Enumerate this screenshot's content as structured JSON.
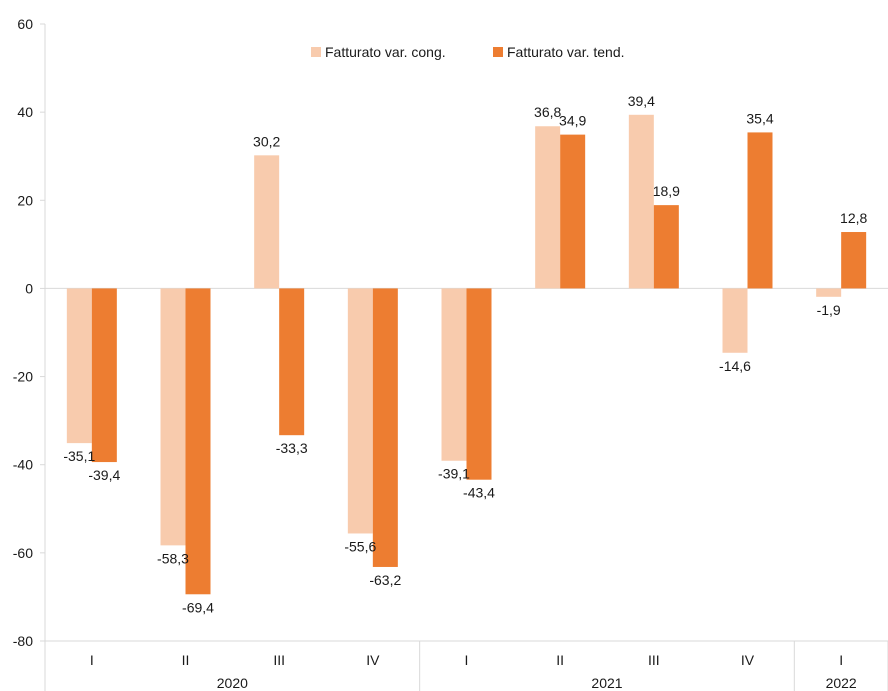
{
  "chart_data": {
    "type": "bar",
    "title": "",
    "xlabel": "",
    "ylabel": "",
    "ylim": [
      -80,
      60
    ],
    "yticks": [
      60,
      40,
      20,
      0,
      -20,
      -40,
      -60,
      -80
    ],
    "grid": false,
    "legend_position": "top",
    "categories": [
      "I",
      "II",
      "III",
      "IV",
      "I",
      "II",
      "III",
      "IV",
      "I"
    ],
    "groups": [
      {
        "label": "2020",
        "span": 4
      },
      {
        "label": "2021",
        "span": 4
      },
      {
        "label": "2022",
        "span": 1
      }
    ],
    "series": [
      {
        "name": "Fatturato var. cong.",
        "color": "#f8cbad",
        "values": [
          -35.1,
          -58.3,
          30.2,
          -55.6,
          -39.1,
          36.8,
          39.4,
          -14.6,
          -1.9
        ],
        "labels": [
          "-35,1",
          "-58,3",
          "30,2",
          "-55,6",
          "-39,1",
          "36,8",
          "39,4",
          "-14,6",
          "-1,9"
        ]
      },
      {
        "name": "Fatturato var. tend.",
        "color": "#ed7d31",
        "values": [
          -39.4,
          -69.4,
          -33.3,
          -63.2,
          -43.4,
          34.9,
          18.9,
          35.4,
          12.8
        ],
        "labels": [
          "-39,4",
          "-69,4",
          "-33,3",
          "-63,2",
          "-43,4",
          "34,9",
          "18,9",
          "35,4",
          "12,8"
        ]
      }
    ]
  }
}
